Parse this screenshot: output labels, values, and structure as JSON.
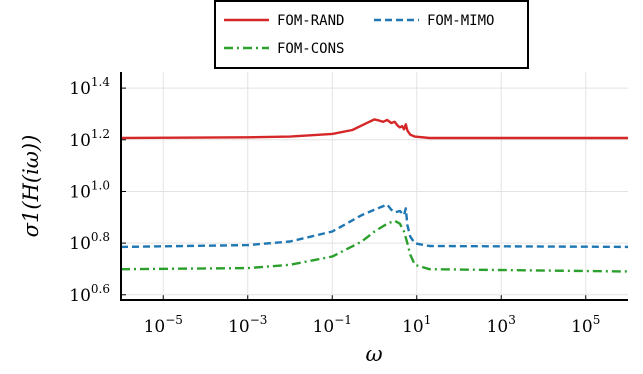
{
  "chart_data": {
    "type": "line",
    "xscale": "log",
    "yscale": "log",
    "xlabel": "ω",
    "ylabel": "σ1(H(iω))",
    "xlim": [
      1e-06,
      1000000.0
    ],
    "ylim": [
      3.8,
      29
    ],
    "grid": true,
    "legend_position": "top-center",
    "x_ticks": [
      {
        "base": "10",
        "exp": "−5",
        "value": 1e-05
      },
      {
        "base": "10",
        "exp": "−3",
        "value": 0.001
      },
      {
        "base": "10",
        "exp": "−1",
        "value": 0.1
      },
      {
        "base": "10",
        "exp": "1",
        "value": 10
      },
      {
        "base": "10",
        "exp": "3",
        "value": 1000
      },
      {
        "base": "10",
        "exp": "5",
        "value": 100000
      }
    ],
    "y_ticks": [
      {
        "base": "10",
        "exp": "0.6",
        "value": 3.981
      },
      {
        "base": "10",
        "exp": "0.8",
        "value": 6.31
      },
      {
        "base": "10",
        "exp": "1.0",
        "value": 10.0
      },
      {
        "base": "10",
        "exp": "1.2",
        "value": 15.85
      },
      {
        "base": "10",
        "exp": "1.4",
        "value": 25.12
      }
    ],
    "series": [
      {
        "name": "FOM-RAND",
        "color": "#d62728",
        "dash": "solid",
        "points": [
          [
            1e-06,
            16.1
          ],
          [
            0.001,
            16.2
          ],
          [
            0.01,
            16.3
          ],
          [
            0.1,
            16.7
          ],
          [
            0.3,
            17.3
          ],
          [
            0.7,
            18.5
          ],
          [
            1.0,
            19.0
          ],
          [
            1.3,
            18.8
          ],
          [
            1.6,
            18.6
          ],
          [
            2.0,
            18.9
          ],
          [
            2.5,
            18.4
          ],
          [
            3.0,
            18.6
          ],
          [
            3.5,
            18.0
          ],
          [
            4.0,
            17.7
          ],
          [
            4.5,
            17.9
          ],
          [
            5.0,
            17.4
          ],
          [
            5.5,
            18.2
          ],
          [
            6.0,
            17.2
          ],
          [
            7.0,
            16.6
          ],
          [
            9.0,
            16.3
          ],
          [
            20,
            16.1
          ],
          [
            1000000.0,
            16.1
          ]
        ]
      },
      {
        "name": "FOM-MIMO",
        "color": "#1f77b4",
        "dash": "dashed",
        "points": [
          [
            1e-06,
            6.1
          ],
          [
            0.001,
            6.2
          ],
          [
            0.01,
            6.4
          ],
          [
            0.1,
            7.0
          ],
          [
            0.5,
            8.1
          ],
          [
            1.0,
            8.5
          ],
          [
            2.0,
            8.9
          ],
          [
            2.5,
            8.5
          ],
          [
            3.0,
            8.3
          ],
          [
            4.0,
            8.4
          ],
          [
            5.0,
            8.1
          ],
          [
            5.5,
            8.6
          ],
          [
            6.0,
            7.4
          ],
          [
            7.0,
            6.7
          ],
          [
            9.0,
            6.3
          ],
          [
            20,
            6.15
          ],
          [
            1000000.0,
            6.1
          ]
        ]
      },
      {
        "name": "FOM-CONS",
        "color": "#2ca02c",
        "dash": "dashdot",
        "points": [
          [
            1e-06,
            5.0
          ],
          [
            0.001,
            5.05
          ],
          [
            0.01,
            5.2
          ],
          [
            0.1,
            5.6
          ],
          [
            0.5,
            6.4
          ],
          [
            1.0,
            7.0
          ],
          [
            2.0,
            7.5
          ],
          [
            3.0,
            7.7
          ],
          [
            4.0,
            7.5
          ],
          [
            5.0,
            7.0
          ],
          [
            6.0,
            6.3
          ],
          [
            7.0,
            5.7
          ],
          [
            9.0,
            5.2
          ],
          [
            20,
            5.0
          ],
          [
            1000000.0,
            4.9
          ]
        ]
      }
    ]
  }
}
